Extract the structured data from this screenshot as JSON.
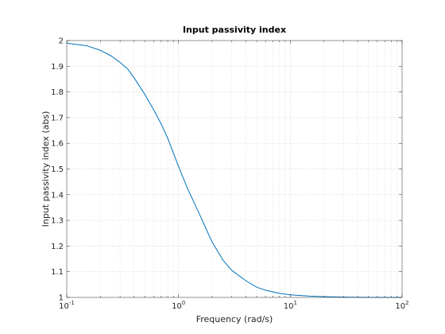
{
  "chart_data": {
    "type": "line",
    "title": "Input passivity index",
    "xlabel": "Frequency (rad/s)",
    "ylabel": "Input passivity index (abs)",
    "xscale": "log",
    "xlim": [
      0.1,
      100
    ],
    "ylim": [
      1,
      2
    ],
    "grid": true,
    "minor_grid": true,
    "x_ticks": [
      {
        "value": 0.1,
        "base": "10",
        "exp": "-1"
      },
      {
        "value": 1,
        "base": "10",
        "exp": "0"
      },
      {
        "value": 10,
        "base": "10",
        "exp": "1"
      },
      {
        "value": 100,
        "base": "10",
        "exp": "2"
      }
    ],
    "y_ticks": [
      "1",
      "1.1",
      "1.2",
      "1.3",
      "1.4",
      "1.5",
      "1.6",
      "1.7",
      "1.8",
      "1.9",
      "2"
    ],
    "line_color": "#0072bd",
    "series": [
      {
        "x": [
          0.1,
          0.15,
          0.2,
          0.25,
          0.3,
          0.35,
          0.4,
          0.5,
          0.6,
          0.7,
          0.8,
          1,
          1.2,
          1.5,
          2,
          2.5,
          3,
          4,
          5,
          6,
          8,
          10,
          15,
          20,
          30,
          50,
          100
        ],
        "y": [
          1.99,
          1.98,
          1.962,
          1.94,
          1.915,
          1.89,
          1.855,
          1.79,
          1.73,
          1.675,
          1.62,
          1.51,
          1.425,
          1.335,
          1.215,
          1.145,
          1.105,
          1.065,
          1.04,
          1.028,
          1.016,
          1.01,
          1.005,
          1.003,
          1.001,
          1.0,
          1.0
        ]
      }
    ]
  }
}
